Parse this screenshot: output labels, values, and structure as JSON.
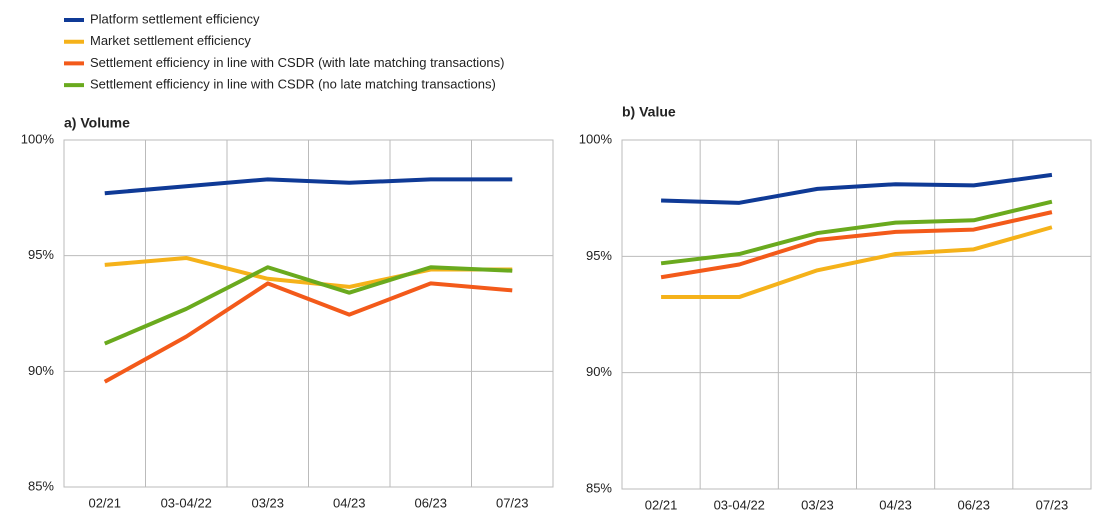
{
  "chart_data": [
    {
      "type": "line",
      "title": "a) Volume",
      "categories": [
        "02/21",
        "03-04/22",
        "03/23",
        "04/23",
        "06/23",
        "07/23"
      ],
      "ylim": [
        85,
        100
      ],
      "yticks": [
        {
          "value": 85,
          "label": "85%"
        },
        {
          "value": 90,
          "label": "90%"
        },
        {
          "value": 95,
          "label": "95%"
        },
        {
          "value": 100,
          "label": "100%"
        }
      ],
      "grid": true,
      "series": [
        {
          "name": "Platform settlement efficiency",
          "color": "#0f3a96",
          "values": [
            97.7,
            98.0,
            98.3,
            98.15,
            98.3,
            98.3
          ]
        },
        {
          "name": "Market settlement efficiency",
          "color": "#f5b21a",
          "values": [
            94.6,
            94.9,
            94.0,
            93.65,
            94.4,
            94.4
          ]
        },
        {
          "name": "Settlement efficiency in line with CSDR (with late matching transactions)",
          "color": "#f35a1a",
          "values": [
            89.55,
            91.5,
            93.8,
            92.45,
            93.8,
            93.5
          ]
        },
        {
          "name": "Settlement efficiency in line with CSDR (no late matching transactions)",
          "color": "#6aaa1e",
          "values": [
            91.2,
            92.7,
            94.5,
            93.4,
            94.5,
            94.35
          ]
        }
      ]
    },
    {
      "type": "line",
      "title": "b) Value",
      "categories": [
        "02/21",
        "03-04/22",
        "03/23",
        "04/23",
        "06/23",
        "07/23"
      ],
      "ylim": [
        85,
        100
      ],
      "yticks": [
        {
          "value": 85,
          "label": "85%"
        },
        {
          "value": 90,
          "label": "90%"
        },
        {
          "value": 95,
          "label": "95%"
        },
        {
          "value": 100,
          "label": "100%"
        }
      ],
      "grid": true,
      "series": [
        {
          "name": "Platform settlement efficiency",
          "color": "#0f3a96",
          "values": [
            97.4,
            97.3,
            97.9,
            98.1,
            98.05,
            98.5
          ]
        },
        {
          "name": "Market settlement efficiency",
          "color": "#f5b21a",
          "values": [
            93.25,
            93.25,
            94.4,
            95.1,
            95.3,
            96.25
          ]
        },
        {
          "name": "Settlement efficiency in line with CSDR (with late matching transactions)",
          "color": "#f35a1a",
          "values": [
            94.1,
            94.65,
            95.7,
            96.05,
            96.15,
            96.9
          ]
        },
        {
          "name": "Settlement efficiency in line with CSDR (no late matching transactions)",
          "color": "#6aaa1e",
          "values": [
            94.7,
            95.1,
            96.0,
            96.45,
            96.55,
            97.35
          ]
        }
      ]
    }
  ]
}
